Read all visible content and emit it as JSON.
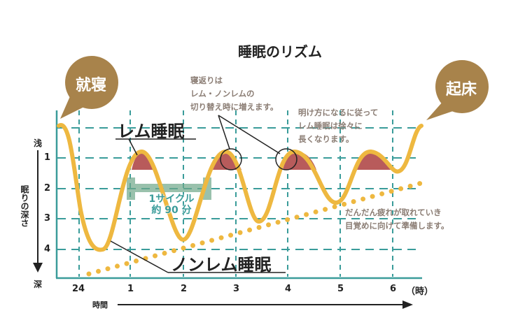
{
  "title": "睡眠のリズム",
  "bubbles": {
    "bedtime": "就寝",
    "wakeup": "起床"
  },
  "labels": {
    "rem": "レム睡眠",
    "nonrem": "ノンレム睡眠"
  },
  "notes": {
    "turning": [
      "寝返りは",
      "レム・ノンレムの",
      "切り替え時に増えます。"
    ],
    "dawn": [
      "明け方になるに従って",
      "レム睡眠は徐々に",
      "長くなります。"
    ],
    "recovery": [
      "だんだん疲れが取れていき",
      "目覚めに向けて準備します。"
    ]
  },
  "cycle": {
    "line1": "1サイクル",
    "line2": "約 90 分"
  },
  "y_axis": {
    "title": "眠りの深さ",
    "shallow": "浅",
    "deep": "深",
    "ticks": [
      "1",
      "2",
      "3",
      "4"
    ]
  },
  "x_axis": {
    "title": "時間",
    "ticks": [
      "24",
      "1",
      "2",
      "3",
      "4",
      "5",
      "6"
    ],
    "unit": "（時）"
  },
  "colors": {
    "curve": "#eeb840",
    "rem_fill": "#b85b5b",
    "grid": "#3a9c9a",
    "bubble": "#a8834b",
    "note": "#8b7d74",
    "cycle_bar": "#6fa88a"
  }
}
